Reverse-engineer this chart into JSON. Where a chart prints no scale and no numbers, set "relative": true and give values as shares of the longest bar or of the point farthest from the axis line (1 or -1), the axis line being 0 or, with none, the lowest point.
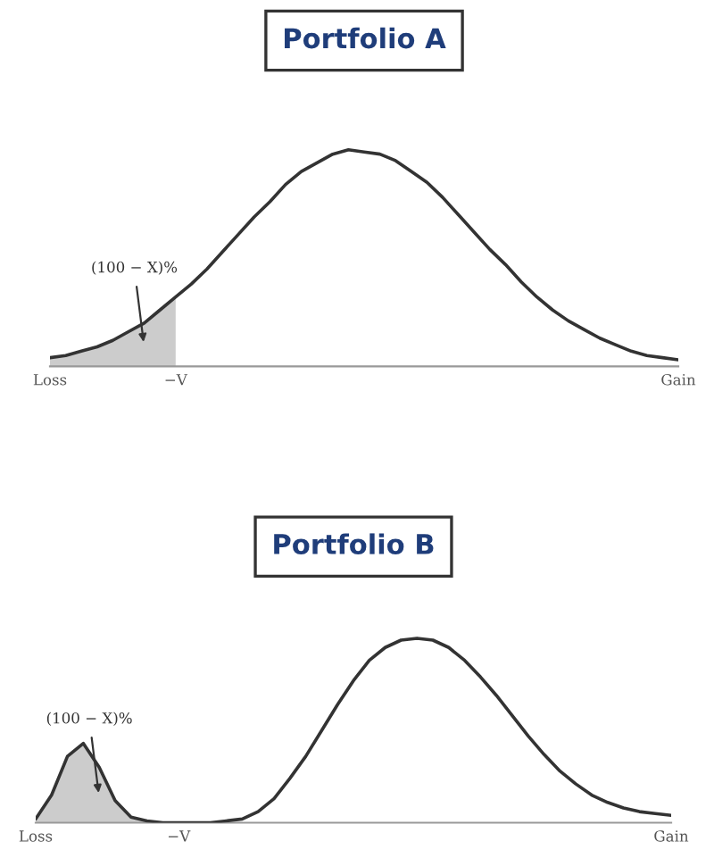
{
  "chart_data": [
    {
      "type": "line",
      "title": "Portfolio A",
      "relative": true,
      "tick_labels": "x",
      "marker": "none",
      "line_style": "solid",
      "categories": [
        "Loss",
        null,
        null,
        null,
        null,
        null,
        null,
        null,
        "−V",
        null,
        null,
        null,
        null,
        null,
        null,
        null,
        null,
        null,
        null,
        null,
        null,
        null,
        null,
        null,
        null,
        null,
        null,
        null,
        null,
        null,
        null,
        null,
        null,
        null,
        null,
        null,
        null,
        null,
        null,
        null,
        "Gain"
      ],
      "series": [
        {
          "type": "area",
          "color": "#cccccc",
          "values": [
            0.04,
            0.05,
            0.07,
            0.09,
            0.12,
            0.16,
            0.2,
            0.26,
            0.32,
            null,
            null,
            null,
            null,
            null,
            null,
            null,
            null,
            null,
            null,
            null,
            null,
            null,
            null,
            null,
            null,
            null,
            null,
            null,
            null,
            null,
            null,
            null,
            null,
            null,
            null,
            null,
            null,
            null,
            null,
            null,
            null
          ]
        },
        {
          "color": "#333333",
          "values": [
            0.04,
            0.05,
            0.07,
            0.09,
            0.12,
            0.16,
            0.2,
            0.26,
            0.32,
            0.38,
            0.45,
            0.53,
            0.61,
            0.69,
            0.76,
            0.84,
            0.9,
            0.94,
            0.98,
            1.0,
            0.99,
            0.98,
            0.95,
            0.9,
            0.85,
            0.78,
            0.7,
            0.62,
            0.54,
            0.47,
            0.39,
            0.32,
            0.26,
            0.21,
            0.17,
            0.13,
            0.1,
            0.07,
            0.05,
            0.04,
            0.03
          ]
        }
      ],
      "annotations": [
        "(100 − X)%"
      ]
    },
    {
      "type": "line",
      "title": "Portfolio B",
      "relative": true,
      "tick_labels": "x",
      "marker": "none",
      "line_style": "solid",
      "categories": [
        "Loss",
        null,
        null,
        null,
        null,
        null,
        null,
        null,
        null,
        "−V",
        null,
        null,
        null,
        null,
        null,
        null,
        null,
        null,
        null,
        null,
        null,
        null,
        null,
        null,
        null,
        null,
        null,
        null,
        null,
        null,
        null,
        null,
        null,
        null,
        null,
        null,
        null,
        null,
        null,
        null,
        "Gain"
      ],
      "series": [
        {
          "type": "area",
          "color": "#cccccc",
          "values": [
            0.02,
            0.15,
            0.36,
            0.43,
            0.3,
            0.12,
            0.03,
            0.01,
            0,
            0,
            null,
            null,
            null,
            null,
            null,
            null,
            null,
            null,
            null,
            null,
            null,
            null,
            null,
            null,
            null,
            null,
            null,
            null,
            null,
            null,
            null,
            null,
            null,
            null,
            null,
            null,
            null,
            null,
            null,
            null,
            null
          ]
        },
        {
          "color": "#333333",
          "values": [
            0.02,
            0.15,
            0.36,
            0.43,
            0.3,
            0.12,
            0.03,
            0.01,
            0,
            0,
            0,
            0,
            0.01,
            0.02,
            0.06,
            0.13,
            0.24,
            0.36,
            0.5,
            0.64,
            0.77,
            0.88,
            0.95,
            0.99,
            1.0,
            0.99,
            0.95,
            0.88,
            0.79,
            0.69,
            0.58,
            0.47,
            0.37,
            0.28,
            0.21,
            0.15,
            0.11,
            0.08,
            0.06,
            0.05,
            0.04
          ]
        }
      ],
      "annotations": [
        "(100 − X)%"
      ]
    }
  ]
}
